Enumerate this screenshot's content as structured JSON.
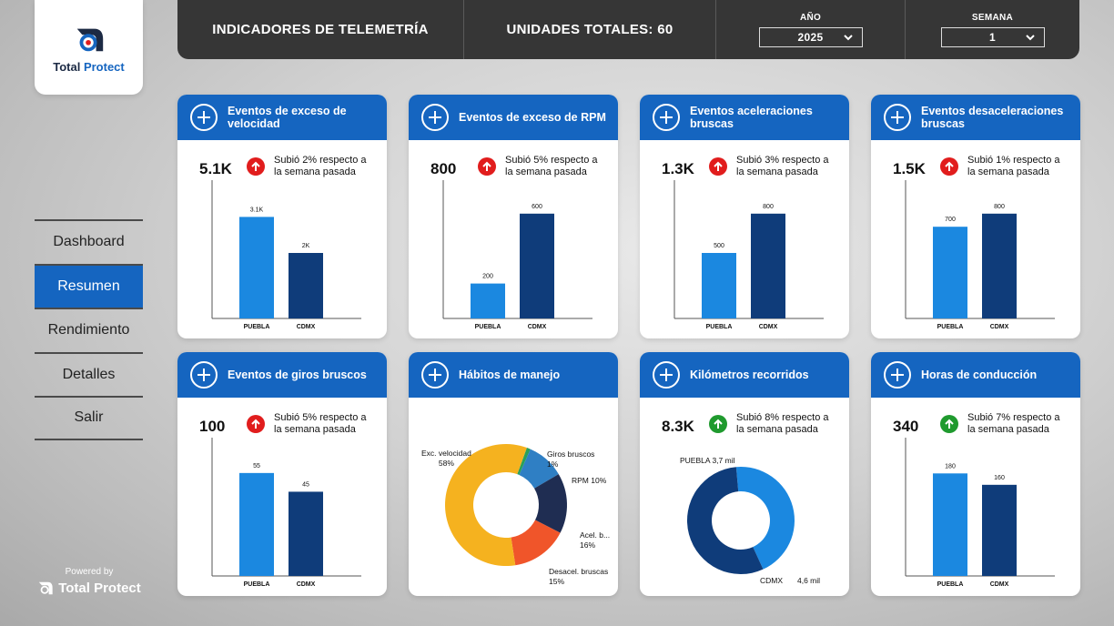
{
  "logo": {
    "word1": "Total",
    "word2": "Protect"
  },
  "header": {
    "title": "INDICADORES DE TELEMETRÍA",
    "units": "UNIDADES TOTALES: 60",
    "year_label": "AÑO",
    "year_value": "2025",
    "week_label": "SEMANA",
    "week_value": "1"
  },
  "nav": {
    "items": [
      "Dashboard",
      "Resumen",
      "Rendimiento",
      "Detalles",
      "Salir"
    ],
    "active": "Resumen"
  },
  "footer": {
    "powered_by": "Powered by",
    "brand": "Total Protect"
  },
  "colors": {
    "brand_blue": "#1565c0",
    "puebla": "#1b88e0",
    "cdmx": "#0f3c7a",
    "up_red": "#e11d1d",
    "up_green": "#1f9a2e"
  },
  "cards": [
    {
      "title": "Eventos de exceso de velocidad",
      "kpi": "5.1K",
      "trend_text": "Subió 2% respecto a la semana pasada",
      "trend": "red"
    },
    {
      "title": "Eventos de exceso de RPM",
      "kpi": "800",
      "trend_text": "Subió 5% respecto a la semana pasada",
      "trend": "red"
    },
    {
      "title": "Eventos aceleraciones bruscas",
      "kpi": "1.3K",
      "trend_text": "Subió 3% respecto a la semana pasada",
      "trend": "red"
    },
    {
      "title": "Eventos desaceleraciones bruscas",
      "kpi": "1.5K",
      "trend_text": "Subió 1% respecto a la semana pasada",
      "trend": "red"
    },
    {
      "title": "Eventos de giros bruscos",
      "kpi": "100",
      "trend_text": "Subió 5% respecto a la semana pasada",
      "trend": "red"
    },
    {
      "title": "Hábitos de manejo"
    },
    {
      "title": "Kilómetros recorridos",
      "kpi": "8.3K",
      "trend_text": "Subió 8% respecto a la semana pasada",
      "trend": "green"
    },
    {
      "title": "Horas de conducción",
      "kpi": "340",
      "trend_text": "Subió 7% respecto a la semana pasada",
      "trend": "green"
    }
  ],
  "chart_data": [
    {
      "type": "bar",
      "card": 0,
      "categories": [
        "PUEBLA",
        "CDMX"
      ],
      "values": [
        3100,
        2000
      ],
      "labels": [
        "3.1K",
        "2K"
      ],
      "ylim": [
        0,
        4000
      ]
    },
    {
      "type": "bar",
      "card": 1,
      "categories": [
        "PUEBLA",
        "CDMX"
      ],
      "values": [
        200,
        600
      ],
      "labels": [
        "200",
        "600"
      ],
      "ylim": [
        0,
        750
      ]
    },
    {
      "type": "bar",
      "card": 2,
      "categories": [
        "PUEBLA",
        "CDMX"
      ],
      "values": [
        500,
        800
      ],
      "labels": [
        "500",
        "800"
      ],
      "ylim": [
        0,
        1000
      ]
    },
    {
      "type": "bar",
      "card": 3,
      "categories": [
        "PUEBLA",
        "CDMX"
      ],
      "values": [
        700,
        800
      ],
      "labels": [
        "700",
        "800"
      ],
      "ylim": [
        0,
        1000
      ]
    },
    {
      "type": "bar",
      "card": 4,
      "categories": [
        "PUEBLA",
        "CDMX"
      ],
      "values": [
        55,
        45
      ],
      "labels": [
        "55",
        "45"
      ],
      "ylim": [
        0,
        70
      ]
    },
    {
      "type": "pie",
      "card": 5,
      "donut": true,
      "slices": [
        {
          "label": "Giros bruscos",
          "pct": "1%",
          "value": 1,
          "color": "#2aa05a"
        },
        {
          "label": "RPM",
          "pct": "10%",
          "value": 10,
          "color": "#2f7fc4"
        },
        {
          "label": "Acel. b...",
          "pct": "16%",
          "value": 16,
          "color": "#1f2d52"
        },
        {
          "label": "Desacel. bruscas",
          "pct": "15%",
          "value": 15,
          "color": "#f0552a"
        },
        {
          "label": "Exc. velocidad",
          "pct": "58%",
          "value": 58,
          "color": "#f5b21f"
        }
      ]
    },
    {
      "type": "pie",
      "card": 6,
      "donut": true,
      "slices": [
        {
          "label": "PUEBLA",
          "pct": "3,7 mil",
          "value": 3.7,
          "color": "#1b88e0"
        },
        {
          "label": "CDMX",
          "pct": "4,6 mil",
          "value": 4.6,
          "color": "#0f3c7a"
        }
      ]
    },
    {
      "type": "bar",
      "card": 7,
      "categories": [
        "PUEBLA",
        "CDMX"
      ],
      "values": [
        180,
        160
      ],
      "labels": [
        "180",
        "160"
      ],
      "ylim": [
        0,
        230
      ]
    }
  ]
}
